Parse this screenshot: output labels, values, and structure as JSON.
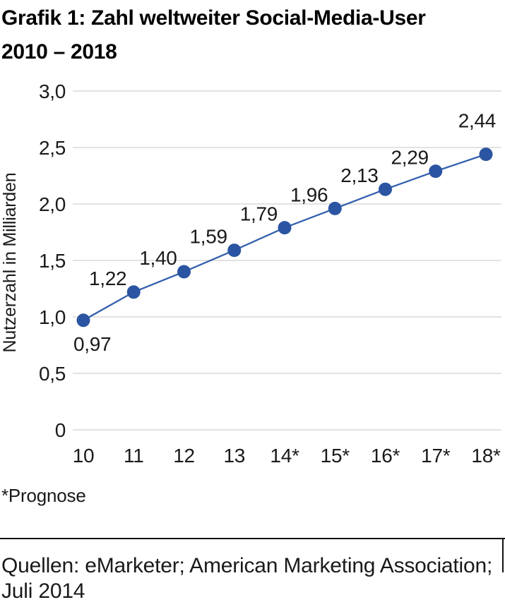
{
  "title_lines": [
    "Grafik 1: Zahl weltweiter Social-Media-User",
    "2010 – 2018"
  ],
  "footnote": "*Prognose",
  "source": "Quellen: eMarketer; American Marketing Association; Juli 2014",
  "chart_data": {
    "type": "line",
    "title": "Grafik 1: Zahl weltweiter Social-Media-User 2010 – 2018",
    "xlabel": "",
    "ylabel": "Nutzerzahl in Milliarden",
    "categories": [
      "10",
      "11",
      "12",
      "13",
      "14*",
      "15*",
      "16*",
      "17*",
      "18*"
    ],
    "values": [
      0.97,
      1.22,
      1.4,
      1.59,
      1.79,
      1.96,
      2.13,
      2.29,
      2.44
    ],
    "value_labels": [
      "0,97",
      "1,22",
      "1,40",
      "1,59",
      "1,79",
      "1,96",
      "2,13",
      "2,29",
      "2,44"
    ],
    "y_tick_labels": [
      "3,0",
      "2,5",
      "2,0",
      "1,5",
      "1,0",
      "0,5",
      "0"
    ],
    "y_tick_values": [
      3.0,
      2.5,
      2.0,
      1.5,
      1.0,
      0.5,
      0
    ],
    "ylim": [
      0,
      3
    ],
    "grid": true,
    "legend": "none",
    "colors": {
      "line": "#3560ae",
      "point": "#2b55a2",
      "gridline": "#d9d9d9",
      "text": "#1a1a1a"
    }
  }
}
